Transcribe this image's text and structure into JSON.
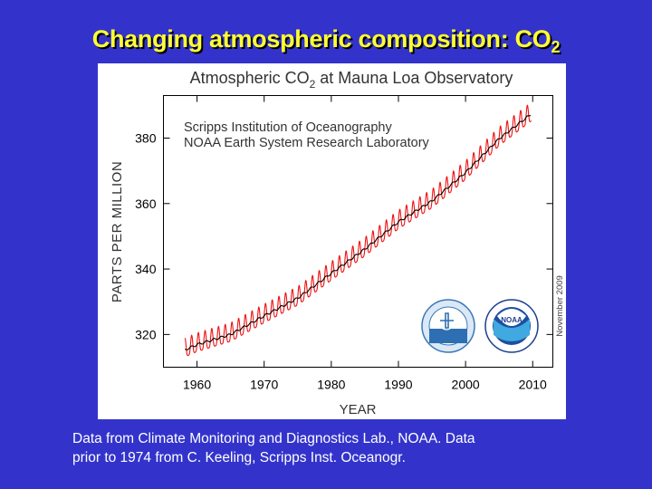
{
  "slide": {
    "title_main": "Changing atmospheric composition: CO",
    "title_sub": "2",
    "caption_line1": "Data from Climate Monitoring and Diagnostics Lab., NOAA. Data",
    "caption_line2": "prior to 1974 from C. Keeling, Scripps Inst. Oceanogr."
  },
  "chart_data": {
    "type": "line",
    "title_main": "Atmospheric CO",
    "title_sub": "2",
    "title_tail": " at Mauna Loa Observatory",
    "source_line1": "Scripps Institution of Oceanography",
    "source_line2": "NOAA Earth System Research Laboratory",
    "xlabel": "YEAR",
    "ylabel": "PARTS PER MILLION",
    "date_note": "November 2009",
    "xlim": [
      1955,
      2013
    ],
    "ylim": [
      310,
      393
    ],
    "x_ticks": [
      1960,
      1970,
      1980,
      1990,
      2000,
      2010
    ],
    "y_ticks": [
      320,
      340,
      360,
      380
    ],
    "grid": false,
    "seasonal_amplitude_ppm": 3,
    "series": [
      {
        "color": "#ee1111",
        "style": "monthly",
        "trend_points": [
          [
            1958.2,
            315.3
          ],
          [
            1960,
            316.9
          ],
          [
            1965,
            320.0
          ],
          [
            1970,
            325.7
          ],
          [
            1975,
            331.1
          ],
          [
            1980,
            338.7
          ],
          [
            1985,
            346.1
          ],
          [
            1990,
            354.4
          ],
          [
            1995,
            360.8
          ],
          [
            2000,
            369.5
          ],
          [
            2005,
            379.8
          ],
          [
            2009.8,
            387.4
          ]
        ]
      },
      {
        "color": "#000000",
        "style": "annual-average",
        "trend_points": [
          [
            1958.2,
            315.3
          ],
          [
            1960,
            316.9
          ],
          [
            1965,
            320.0
          ],
          [
            1970,
            325.7
          ],
          [
            1975,
            331.1
          ],
          [
            1980,
            338.7
          ],
          [
            1985,
            346.1
          ],
          [
            1990,
            354.4
          ],
          [
            1995,
            360.8
          ],
          [
            2000,
            369.5
          ],
          [
            2005,
            379.8
          ],
          [
            2009.8,
            387.4
          ]
        ]
      }
    ],
    "logos": [
      "scripps-logo",
      "noaa-logo"
    ],
    "noaa_logo_text": "NOAA"
  }
}
